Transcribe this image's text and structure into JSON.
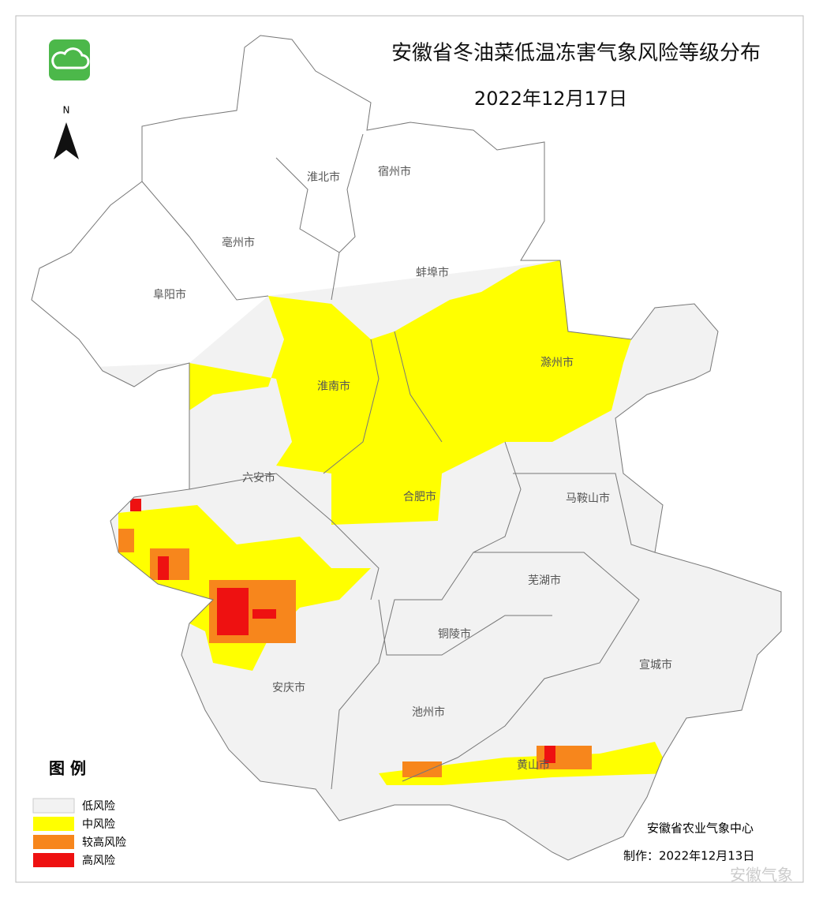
{
  "header": {
    "title": "安徽省冬油菜低温冻害气象风险等级分布",
    "date": "2022年12月17日"
  },
  "north": "N",
  "cities": [
    "淮北市",
    "宿州市",
    "亳州市",
    "蚌埠市",
    "阜阳市",
    "淮南市",
    "滁州市",
    "六安市",
    "合肥市",
    "马鞍山市",
    "芜湖市",
    "铜陵市",
    "宣城市",
    "安庆市",
    "池州市",
    "黄山市"
  ],
  "legend": {
    "title": "图 例",
    "items": [
      {
        "label": "低风险",
        "color": "#f2f2f2"
      },
      {
        "label": "中风险",
        "color": "#ffff00"
      },
      {
        "label": "较高风险",
        "color": "#f7861c"
      },
      {
        "label": "高风险",
        "color": "#ee1111"
      }
    ]
  },
  "footer": {
    "agency": "安徽省农业气象中心",
    "made": "制作：2022年12月13日",
    "watermark": "安徽气象"
  }
}
